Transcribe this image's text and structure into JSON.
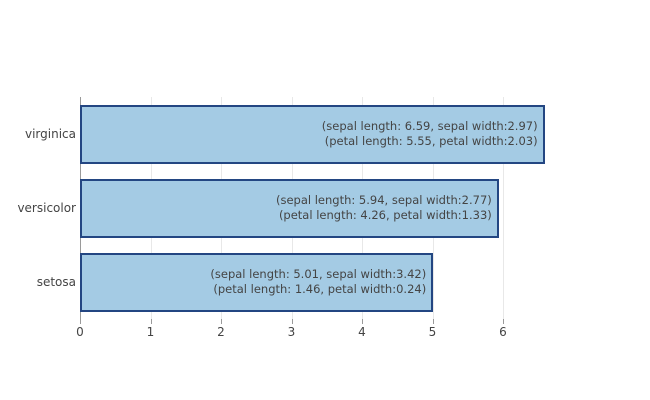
{
  "chart_data": {
    "type": "bar",
    "orientation": "horizontal",
    "title": "",
    "xlabel": "",
    "ylabel": "",
    "categories": [
      "virginica",
      "versicolor",
      "setosa"
    ],
    "series": [
      {
        "name": "sepal length",
        "values": [
          6.59,
          5.94,
          5.01
        ]
      },
      {
        "name": "sepal width",
        "values": [
          2.97,
          2.77,
          3.42
        ]
      },
      {
        "name": "petal length",
        "values": [
          5.55,
          4.26,
          1.46
        ]
      },
      {
        "name": "petal width",
        "values": [
          2.03,
          1.33,
          0.24
        ]
      }
    ],
    "bar_values": [
      6.59,
      5.94,
      5.01
    ],
    "annotations": [
      [
        "(sepal length: 6.59, sepal width:2.97)",
        "(petal length: 5.55, petal width:2.03)"
      ],
      [
        "(sepal length: 5.94, sepal width:2.77)",
        "(petal length: 4.26, petal width:1.33)"
      ],
      [
        "(sepal length: 5.01, sepal width:3.42)",
        "(petal length: 1.46, petal width:0.24)"
      ]
    ],
    "x_ticks": [
      0,
      1,
      2,
      3,
      4,
      5,
      6
    ],
    "xlim": [
      0,
      6.8
    ],
    "grid": "vertical",
    "legend": "none",
    "colors": {
      "bar_fill": "#a4cbe4",
      "bar_border": "#234682",
      "gridline": "#e8e8e8",
      "axis_line": "#9a9a9a",
      "tick_mark": "#9a9a9a",
      "text": "#444444"
    }
  }
}
